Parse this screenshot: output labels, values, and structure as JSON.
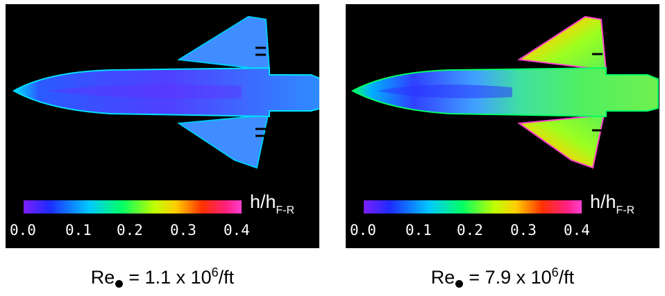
{
  "colorbar": {
    "label_main": "h/h",
    "label_sub": "F-R",
    "ticks": [
      "0.0",
      "0.1",
      "0.2",
      "0.3",
      "0.4"
    ],
    "colors": [
      "#7a1fff",
      "#1e2bff",
      "#00c8ff",
      "#00ff66",
      "#bfff00",
      "#ffcc00",
      "#ff3000",
      "#ff2080",
      "#ff40d0"
    ]
  },
  "panels": [
    {
      "caption_prefix": "Re",
      "caption_value": "= 1.1 x 10",
      "caption_exp": "6",
      "caption_unit": "/ft",
      "dominant_color": "#3f6bff"
    },
    {
      "caption_prefix": "Re",
      "caption_value": "= 7.9 x 10",
      "caption_exp": "6",
      "caption_unit": "/ft",
      "dominant_color": "#5ef05a"
    }
  ]
}
